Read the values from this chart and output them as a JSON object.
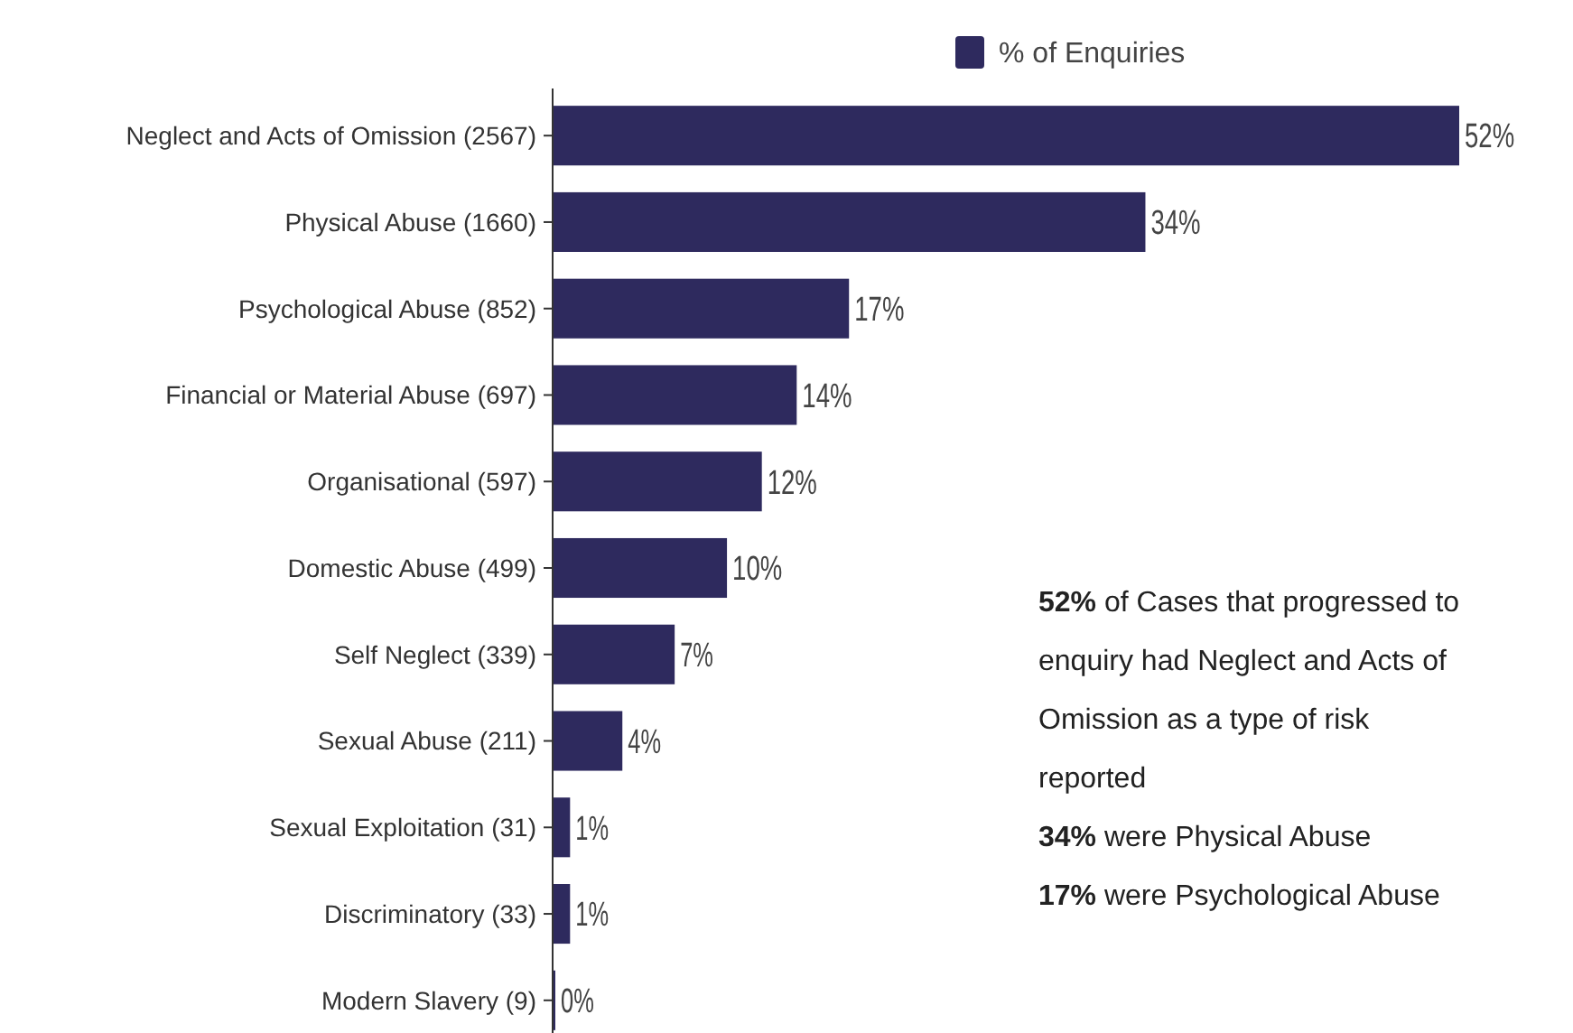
{
  "chart_data": {
    "type": "bar",
    "orientation": "horizontal",
    "categories": [
      "Neglect and Acts of Omission (2567)",
      "Physical Abuse (1660)",
      "Psychological Abuse (852)",
      "Financial or Material Abuse (697)",
      "Organisational (597)",
      "Domestic Abuse (499)",
      "Self Neglect (339)",
      "Sexual Abuse (211)",
      "Sexual Exploitation (31)",
      "Discriminatory (33)",
      "Modern Slavery (9)"
    ],
    "series": [
      {
        "name": "% of Enquiries",
        "color": "#2e2a5e",
        "values": [
          52,
          34,
          17,
          14,
          12,
          10,
          7,
          4,
          1,
          1,
          0
        ],
        "value_labels": [
          "52%",
          "34%",
          "17%",
          "14%",
          "12%",
          "10%",
          "7%",
          "4%",
          "1%",
          "1%",
          "0%"
        ]
      }
    ],
    "legend": "top",
    "tick_labels": "y",
    "annotations": [
      "52% of Cases that progressed to enquiry had Neglect and Acts of Omission as a type of risk reported",
      "34% were Physical Abuse",
      "17% were Psychological Abuse"
    ]
  }
}
